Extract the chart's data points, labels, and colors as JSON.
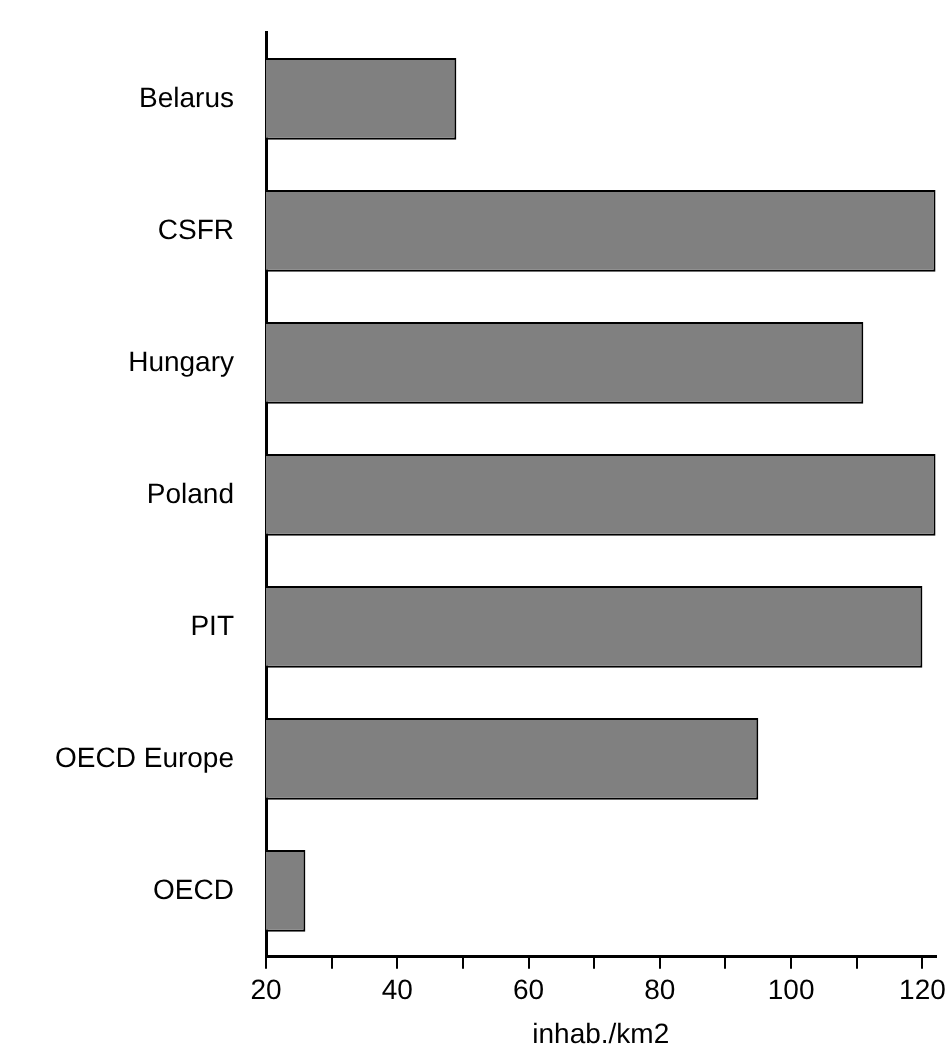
{
  "chart_data": {
    "type": "bar",
    "orientation": "horizontal",
    "categories": [
      "Belarus",
      "CSFR",
      "Hungary",
      "Poland",
      "PIT",
      "OECD Europe",
      "OECD"
    ],
    "values": [
      49,
      122,
      111,
      122,
      120,
      95,
      26
    ],
    "color": "#808080",
    "xlabel": "inhab./km2",
    "xlim": [
      20,
      122
    ],
    "xticks": [
      20,
      {
        "value": 30,
        "label": null
      },
      40,
      {
        "value": 50,
        "label": null
      },
      60,
      {
        "value": 70,
        "label": null
      },
      80,
      {
        "value": 90,
        "label": null
      },
      100,
      {
        "value": 110,
        "label": null
      },
      120
    ],
    "grid": false,
    "legend": false
  }
}
